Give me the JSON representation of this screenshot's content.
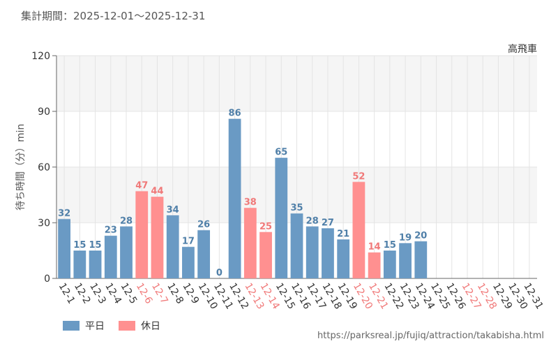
{
  "header": {
    "label": "集計期間：",
    "period": "2025-12-01〜2025-12-31"
  },
  "footer": {
    "url": "https://parksreal.jp/fujiq/attraction/takabisha.html"
  },
  "colors": {
    "weekday": "#6a9ac4",
    "holiday": "#ff9090",
    "weekday_label": "#4f7fa8",
    "holiday_label": "#f07878",
    "axis_text": "#333333",
    "band": "#f5f5f5",
    "grid": "#e4e4e4"
  },
  "chart_data": {
    "type": "bar",
    "title": "高飛車",
    "ylabel": "待ち時間（分）min",
    "xlabel": "",
    "ylim": [
      0,
      120
    ],
    "yticks": [
      "0",
      "30",
      "60",
      "90",
      "120"
    ],
    "legend": [
      {
        "key": "weekday",
        "label": "平日"
      },
      {
        "key": "holiday",
        "label": "休日"
      }
    ],
    "categories": [
      "12-1",
      "12-2",
      "12-3",
      "12-4",
      "12-5",
      "12-6",
      "12-7",
      "12-8",
      "12-9",
      "12-10",
      "12-11",
      "12-12",
      "12-13",
      "12-14",
      "12-15",
      "12-16",
      "12-17",
      "12-18",
      "12-19",
      "12-20",
      "12-21",
      "12-22",
      "12-23",
      "12-24",
      "12-25",
      "12-26",
      "12-27",
      "12-28",
      "12-29",
      "12-30",
      "12-31"
    ],
    "values": [
      32,
      15,
      15,
      23,
      28,
      47,
      44,
      34,
      17,
      26,
      0,
      86,
      38,
      25,
      65,
      35,
      28,
      27,
      21,
      52,
      14,
      15,
      19,
      20,
      null,
      null,
      null,
      null,
      null,
      null,
      null
    ],
    "holiday": [
      false,
      false,
      false,
      false,
      false,
      true,
      true,
      false,
      false,
      false,
      false,
      false,
      true,
      true,
      false,
      false,
      false,
      false,
      false,
      true,
      true,
      false,
      false,
      false,
      false,
      false,
      true,
      true,
      false,
      false,
      false
    ]
  }
}
